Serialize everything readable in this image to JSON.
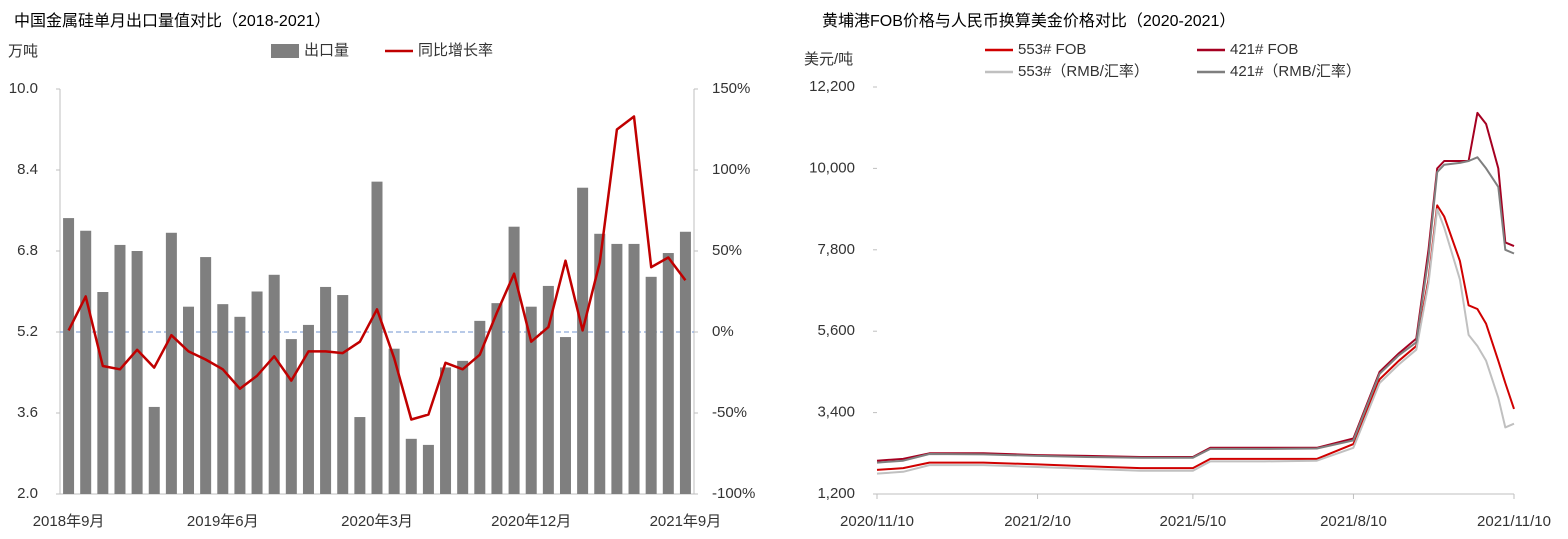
{
  "chart_data": [
    {
      "type": "combo",
      "title": "中国金属硅单月出口量值对比（2018-2021）",
      "y_label": "万吨",
      "legend": "top",
      "categories": [
        "2018年9月",
        null,
        null,
        null,
        null,
        null,
        null,
        null,
        null,
        "2019年6月",
        null,
        null,
        null,
        null,
        null,
        null,
        null,
        null,
        "2020年3月",
        null,
        null,
        null,
        null,
        null,
        null,
        null,
        null,
        "2020年12月",
        null,
        null,
        null,
        null,
        null,
        null,
        null,
        null,
        "2021年9月"
      ],
      "series": [
        {
          "name": "出口量",
          "type": "bar",
          "color": "#7f7f7f",
          "values": [
            7.45,
            7.2,
            5.99,
            6.92,
            6.8,
            3.72,
            7.16,
            5.7,
            6.68,
            5.75,
            5.5,
            6.0,
            6.33,
            5.06,
            5.34,
            6.09,
            5.93,
            3.52,
            8.17,
            4.87,
            3.09,
            2.97,
            4.5,
            4.63,
            5.42,
            5.77,
            7.28,
            5.7,
            6.11,
            5.1,
            8.05,
            7.14,
            6.94,
            6.94,
            6.29,
            6.76,
            7.18
          ]
        },
        {
          "name": "同比增长率",
          "type": "line",
          "axis": "y2",
          "color": "#c00000",
          "values": [
            1,
            22,
            -21,
            -23,
            -11,
            -22,
            -2,
            -12,
            -17,
            -23,
            -35,
            -27,
            -15,
            -30,
            -12,
            -12,
            -13,
            -6,
            14,
            -16,
            -54,
            -51,
            -19,
            -23,
            -14,
            12,
            36,
            -6,
            3,
            44,
            1,
            43,
            125,
            133,
            40,
            46,
            32
          ]
        }
      ],
      "ylim": [
        2,
        10
      ],
      "yticks": [
        {
          "value": 2,
          "label": "2.0"
        },
        3.6,
        5.2,
        6.8,
        8.4,
        {
          "value": 10,
          "label": "10.0"
        }
      ],
      "y2lim": [
        -100,
        150
      ],
      "y2ticks": [
        {
          "value": -100,
          "label": "-100%"
        },
        {
          "value": -50,
          "label": "-50%"
        },
        {
          "value": 0,
          "label": "0%"
        },
        {
          "value": 50,
          "label": "50%"
        },
        {
          "value": 100,
          "label": "100%"
        },
        {
          "value": 150,
          "label": "150%"
        }
      ],
      "reference_line": {
        "value": 0,
        "axis": "y2",
        "color": "#8eaadb"
      },
      "grid": false
    },
    {
      "type": "line",
      "title": "黄埔港FOB价格与人民币换算美金价格对比（2020-2021）",
      "y_label": "美元/吨",
      "legend": "top",
      "x": [
        "2020/11/10",
        "2020/11/25",
        "2020/12/10",
        "2021/1/10",
        "2021/2/10",
        "2021/3/10",
        "2021/4/10",
        "2021/5/10",
        "2021/5/20",
        "2021/6/20",
        "2021/7/20",
        "2021/8/10",
        "2021/8/25",
        "2021/9/5",
        "2021/9/15",
        "2021/9/22",
        "2021/9/27",
        "2021/10/1",
        "2021/10/10",
        "2021/10/15",
        "2021/10/20",
        "2021/10/25",
        "2021/11/1",
        "2021/11/5",
        "2021/11/10"
      ],
      "series": [
        {
          "name": "553# FOB",
          "color": "#d00000",
          "values": [
            1850,
            1900,
            2050,
            2050,
            2000,
            1950,
            1900,
            1900,
            2150,
            2150,
            2150,
            2550,
            4300,
            4800,
            5200,
            7000,
            9000,
            8700,
            7500,
            6300,
            6200,
            5800,
            4800,
            4200,
            3500
          ]
        },
        {
          "name": "421# FOB",
          "color": "#a50021",
          "values": [
            2100,
            2150,
            2300,
            2300,
            2250,
            2230,
            2200,
            2200,
            2450,
            2450,
            2450,
            2700,
            4500,
            5000,
            5400,
            7800,
            10000,
            10200,
            10200,
            10200,
            11500,
            11200,
            10000,
            8000,
            7900
          ]
        },
        {
          "name": "553#（RMB/汇率）",
          "color": "#c0c0c0",
          "values": [
            1750,
            1800,
            1980,
            1980,
            1930,
            1880,
            1830,
            1830,
            2080,
            2080,
            2100,
            2450,
            4200,
            4700,
            5100,
            6900,
            8900,
            8400,
            7000,
            5500,
            5200,
            4800,
            3800,
            3000,
            3100
          ]
        },
        {
          "name": "421#（RMB/汇率）",
          "color": "#7f7f7f",
          "values": [
            2050,
            2100,
            2280,
            2270,
            2230,
            2200,
            2180,
            2180,
            2420,
            2420,
            2430,
            2650,
            4450,
            4950,
            5300,
            7600,
            9900,
            10100,
            10150,
            10200,
            10300,
            10000,
            9500,
            7800,
            7700
          ]
        }
      ],
      "xlim": [
        "2020/11/10",
        "2021/11/10"
      ],
      "xticks": [
        "2020/11/10",
        "2021/2/10",
        "2021/5/10",
        "2021/8/10",
        "2021/11/10"
      ],
      "ylim": [
        1200,
        12200
      ],
      "yticks": [
        {
          "value": 1200,
          "label": "1,200"
        },
        {
          "value": 3400,
          "label": "3,400"
        },
        {
          "value": 5600,
          "label": "5,600"
        },
        {
          "value": 7800,
          "label": "7,800"
        },
        {
          "value": 10000,
          "label": "10,000"
        },
        {
          "value": 12200,
          "label": "12,200"
        }
      ],
      "grid": false
    }
  ]
}
